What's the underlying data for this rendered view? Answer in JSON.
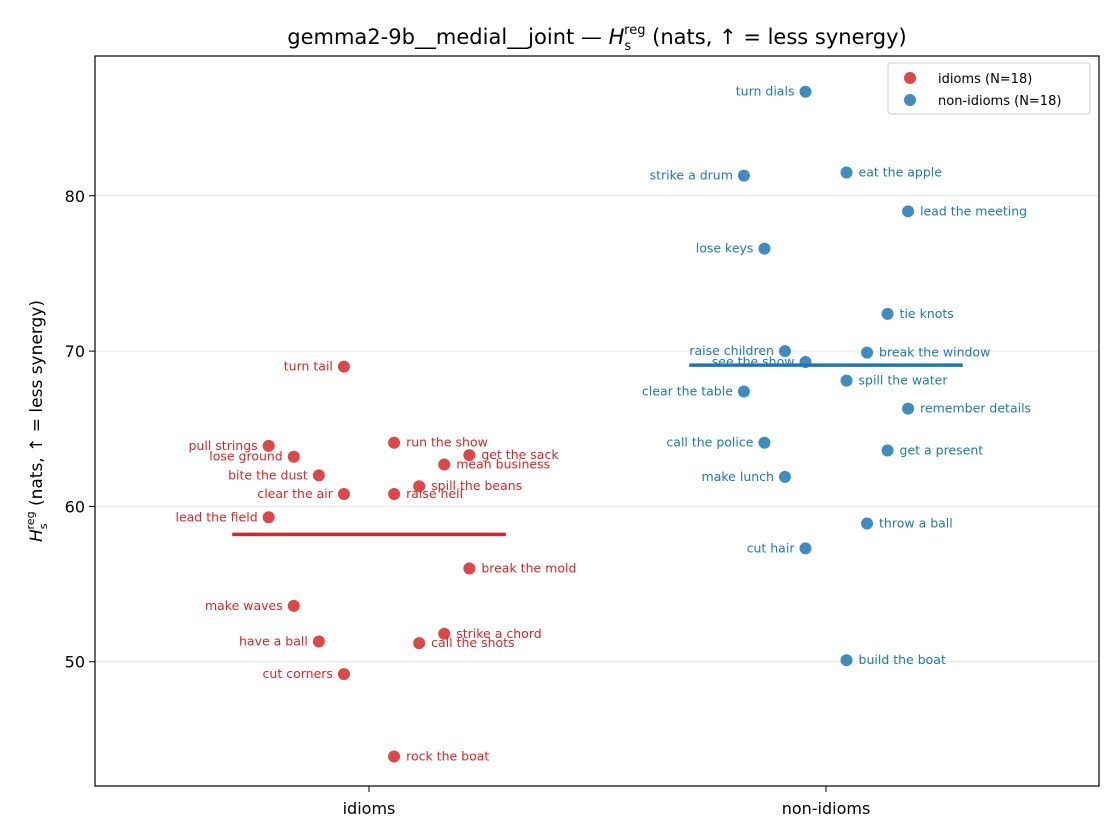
{
  "chart_data": {
    "type": "scatter",
    "title_main": "gemma2-9b__medial__joint — ",
    "title_symbol": "H",
    "title_sub": "s",
    "title_sup": "reg",
    "title_tail": " (nats, ↑ = less synergy)",
    "ylabel_symbol": "H",
    "ylabel_sub": "s",
    "ylabel_sup": "reg",
    "ylabel_tail": " (nats, ↑ = less synergy)",
    "categories": [
      "idioms",
      "non-idioms"
    ],
    "ylim": [
      42,
      89
    ],
    "yticks": [
      50,
      60,
      70,
      80
    ],
    "grid": true,
    "legend_position": "top-right",
    "series": [
      {
        "name": "idioms (N=18)",
        "color": "#d62728",
        "mean": 58.2,
        "points": [
          {
            "label": "turn tail",
            "x": -0.055,
            "y": 69.0,
            "side": "left"
          },
          {
            "label": "pull strings",
            "x": -0.22,
            "y": 63.9,
            "side": "left"
          },
          {
            "label": "lose ground",
            "x": -0.165,
            "y": 63.2,
            "side": "left"
          },
          {
            "label": "bite the dust",
            "x": -0.11,
            "y": 62.0,
            "side": "left"
          },
          {
            "label": "clear the air",
            "x": -0.055,
            "y": 60.8,
            "side": "left"
          },
          {
            "label": "lead the field",
            "x": -0.22,
            "y": 59.3,
            "side": "left"
          },
          {
            "label": "run the show",
            "x": 0.055,
            "y": 64.1,
            "side": "right"
          },
          {
            "label": "get the sack",
            "x": 0.22,
            "y": 63.3,
            "side": "right"
          },
          {
            "label": "mean business",
            "x": 0.165,
            "y": 62.7,
            "side": "right"
          },
          {
            "label": "spill the beans",
            "x": 0.11,
            "y": 61.3,
            "side": "right"
          },
          {
            "label": "raise hell",
            "x": 0.055,
            "y": 60.8,
            "side": "right"
          },
          {
            "label": "break the mold",
            "x": 0.22,
            "y": 56.0,
            "side": "right"
          },
          {
            "label": "make waves",
            "x": -0.165,
            "y": 53.6,
            "side": "left"
          },
          {
            "label": "strike a chord",
            "x": 0.165,
            "y": 51.8,
            "side": "right"
          },
          {
            "label": "have a ball",
            "x": -0.11,
            "y": 51.3,
            "side": "left"
          },
          {
            "label": "call the shots",
            "x": 0.11,
            "y": 51.2,
            "side": "right"
          },
          {
            "label": "cut corners",
            "x": -0.055,
            "y": 49.2,
            "side": "left"
          },
          {
            "label": "rock the boat",
            "x": 0.055,
            "y": 43.9,
            "side": "right"
          }
        ]
      },
      {
        "name": "non-idioms (N=18)",
        "color": "#1f77b4",
        "mean": 69.1,
        "points": [
          {
            "label": "turn dials",
            "x": -0.045,
            "y": 86.7,
            "side": "left"
          },
          {
            "label": "strike a drum",
            "x": -0.18,
            "y": 81.3,
            "side": "left"
          },
          {
            "label": "eat the apple",
            "x": 0.045,
            "y": 81.5,
            "side": "right"
          },
          {
            "label": "lead the meeting",
            "x": 0.18,
            "y": 79.0,
            "side": "right"
          },
          {
            "label": "lose keys",
            "x": -0.135,
            "y": 76.6,
            "side": "left"
          },
          {
            "label": "tie knots",
            "x": 0.135,
            "y": 72.4,
            "side": "right"
          },
          {
            "label": "raise children",
            "x": -0.09,
            "y": 70.0,
            "side": "left"
          },
          {
            "label": "see the show",
            "x": -0.045,
            "y": 69.3,
            "side": "left"
          },
          {
            "label": "break the window",
            "x": 0.09,
            "y": 69.9,
            "side": "right"
          },
          {
            "label": "spill the water",
            "x": 0.045,
            "y": 68.1,
            "side": "right"
          },
          {
            "label": "clear the table",
            "x": -0.18,
            "y": 67.4,
            "side": "left"
          },
          {
            "label": "remember details",
            "x": 0.18,
            "y": 66.3,
            "side": "right"
          },
          {
            "label": "call the police",
            "x": -0.135,
            "y": 64.1,
            "side": "left"
          },
          {
            "label": "get a present",
            "x": 0.135,
            "y": 63.6,
            "side": "right"
          },
          {
            "label": "make lunch",
            "x": -0.09,
            "y": 61.9,
            "side": "left"
          },
          {
            "label": "throw a ball",
            "x": 0.09,
            "y": 58.9,
            "side": "right"
          },
          {
            "label": "cut hair",
            "x": -0.045,
            "y": 57.3,
            "side": "left"
          },
          {
            "label": "build the boat",
            "x": 0.045,
            "y": 50.1,
            "side": "right"
          }
        ]
      }
    ]
  }
}
